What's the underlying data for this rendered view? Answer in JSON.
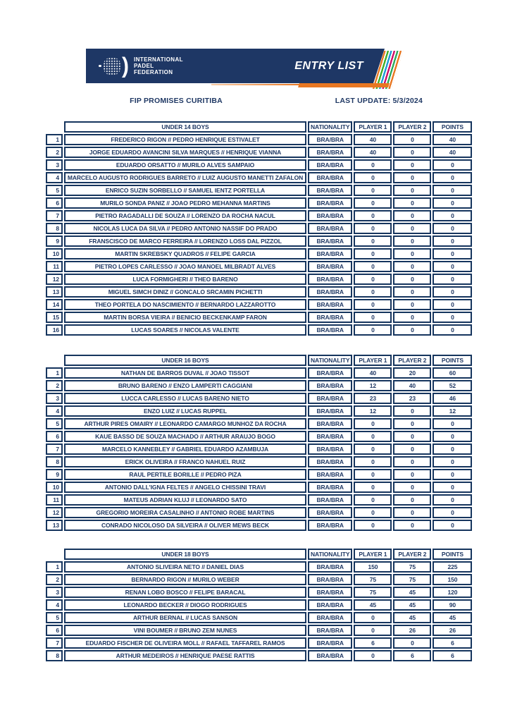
{
  "banner": {
    "org_lines": [
      "INTERNATIONAL",
      "PADEL",
      "FEDERATION"
    ],
    "badge": "ENTRY LIST"
  },
  "header": {
    "event": "FIP PROMISES CURITIBA",
    "last_update": "LAST UPDATE: 5/3/2024"
  },
  "columns": {
    "nationality": "NATIONALITY",
    "player1": "PLAYER 1",
    "player2": "PLAYER 2",
    "points": "POINTS"
  },
  "colors": {
    "navy": "#1e3765",
    "text": "#1f3864",
    "border": "#16355e",
    "orange": "#e87722",
    "stripes": [
      "#e87722",
      "#3fae2a",
      "#1d9bd7",
      "#ce0f69",
      "#2baa5e",
      "#e87722"
    ]
  },
  "tables": [
    {
      "title": "UNDER 14 BOYS",
      "rows": [
        [
          "1",
          "FREDERICO RIGON // PEDRO HENRIQUE ESTIVALET",
          "BRA/BRA",
          "40",
          "0",
          "40"
        ],
        [
          "2",
          "JORGE EDUARDO AVANCINI SILVA MARQUES // HENRIQUE VIANNA",
          "BRA/BRA",
          "40",
          "0",
          "40"
        ],
        [
          "3",
          "EDUARDO ORSATTO // MURILO ALVES SAMPAIO",
          "BRA/BRA",
          "0",
          "0",
          "0"
        ],
        [
          "4",
          "MARCELO AUGUSTO RODRIGUES BARRETO // LUIZ AUGUSTO MANETTI ZAFALON",
          "BRA/BRA",
          "0",
          "0",
          "0"
        ],
        [
          "5",
          "ENRICO SUZIN SORBELLO // SAMUEL IENTZ PORTELLA",
          "BRA/BRA",
          "0",
          "0",
          "0"
        ],
        [
          "6",
          "MURILO SONDA PANIZ // JOAO PEDRO MEHANNA MARTINS",
          "BRA/BRA",
          "0",
          "0",
          "0"
        ],
        [
          "7",
          "PIETRO RAGADALLI DE SOUZA // LORENZO DA ROCHA NACUL",
          "BRA/BRA",
          "0",
          "0",
          "0"
        ],
        [
          "8",
          "NICOLAS LUCA DA SILVA // PEDRO ANTONIO NASSIF DO PRADO",
          "BRA/BRA",
          "0",
          "0",
          "0"
        ],
        [
          "9",
          "FRANSCISCO DE MARCO FERREIRA // LORENZO LOSS DAL PIZZOL",
          "BRA/BRA",
          "0",
          "0",
          "0"
        ],
        [
          "10",
          "MARTIN SKREBSKY QUADROS // FELIPE GARCIA",
          "BRA/BRA",
          "0",
          "0",
          "0"
        ],
        [
          "11",
          "PIETRO LOPES CARLESSO // JOAO MANOEL MILBRADT ALVES",
          "BRA/BRA",
          "0",
          "0",
          "0"
        ],
        [
          "12",
          "LUCA FORMIGHERI // THEO BARENO",
          "BRA/BRA",
          "0",
          "0",
          "0"
        ],
        [
          "13",
          "MIGUEL SIMCH DINIZ // GONCALO SRCAMIN PICHETTI",
          "BRA/BRA",
          "0",
          "0",
          "0"
        ],
        [
          "14",
          "THEO PORTELA DO NASCIMIENTO // BERNARDO LAZZAROTTO",
          "BRA/BRA",
          "0",
          "0",
          "0"
        ],
        [
          "15",
          "MARTIN BORSA VIEIRA // BENICIO BECKENKAMP FARON",
          "BRA/BRA",
          "0",
          "0",
          "0"
        ],
        [
          "16",
          "LUCAS SOARES // NICOLAS VALENTE",
          "BRA/BRA",
          "0",
          "0",
          "0"
        ]
      ]
    },
    {
      "title": "UNDER 16 BOYS",
      "rows": [
        [
          "1",
          "NATHAN DE BARROS DUVAL // JOAO TISSOT",
          "BRA/BRA",
          "40",
          "20",
          "60"
        ],
        [
          "2",
          "BRUNO BARENO // ENZO LAMPERTI CAGGIANI",
          "BRA/BRA",
          "12",
          "40",
          "52"
        ],
        [
          "3",
          "LUCCA CARLESSO // LUCAS BARENO NIETO",
          "BRA/BRA",
          "23",
          "23",
          "46"
        ],
        [
          "4",
          "ENZO LUIZ // LUCAS RUPPEL",
          "BRA/BRA",
          "12",
          "0",
          "12"
        ],
        [
          "5",
          "ARTHUR PIRES OMAIRY // LEONARDO CAMARGO MUNHOZ DA ROCHA",
          "BRA/BRA",
          "0",
          "0",
          "0"
        ],
        [
          "6",
          "KAUE BASSO DE SOUZA MACHADO // ARTHUR ARAUJO BOGO",
          "BRA/BRA",
          "0",
          "0",
          "0"
        ],
        [
          "7",
          "MARCELO KANNEBLEY // GABRIEL EDUARDO AZAMBUJA",
          "BRA/BRA",
          "0",
          "0",
          "0"
        ],
        [
          "8",
          "ERICK OLIVEIRA // FRANCO NAHUEL RUIZ",
          "BRA/BRA",
          "0",
          "0",
          "0"
        ],
        [
          "9",
          "RAUL PERTILE BORILLE // PEDRO PIZA",
          "BRA/BRA",
          "0",
          "0",
          "0"
        ],
        [
          "10",
          "ANTONIO DALL'IGNA FELTES // ANGELO CHISSINI TRAVI",
          "BRA/BRA",
          "0",
          "0",
          "0"
        ],
        [
          "11",
          "MATEUS ADRIAN KLUJ // LEONARDO SATO",
          "BRA/BRA",
          "0",
          "0",
          "0"
        ],
        [
          "12",
          "GREGORIO MOREIRA CASALINHO // ANTONIO ROBE MARTINS",
          "BRA/BRA",
          "0",
          "0",
          "0"
        ],
        [
          "13",
          "CONRADO NICOLOSO DA SILVEIRA // OLIVER MEWS BECK",
          "BRA/BRA",
          "0",
          "0",
          "0"
        ]
      ]
    },
    {
      "title": "UNDER 18 BOYS",
      "rows": [
        [
          "1",
          "ANTONIO SLIVEIRA NETO // DANIEL DIAS",
          "BRA/BRA",
          "150",
          "75",
          "225"
        ],
        [
          "2",
          "BERNARDO RIGON // MURILO WEBER",
          "BRA/BRA",
          "75",
          "75",
          "150"
        ],
        [
          "3",
          "RENAN LOBO BOSCO // FELIPE BARACAL",
          "BRA/BRA",
          "75",
          "45",
          "120"
        ],
        [
          "4",
          "LEONARDO BECKER // DIOGO RODRIGUES",
          "BRA/BRA",
          "45",
          "45",
          "90"
        ],
        [
          "5",
          "ARTHUR BERNAL // LUCAS SANSON",
          "BRA/BRA",
          "0",
          "45",
          "45"
        ],
        [
          "6",
          "VINI BOUMER // BRUNO ZEM NUNES",
          "BRA/BRA",
          "0",
          "26",
          "26"
        ],
        [
          "7",
          "EDUARDO FISCHER DE OLIVEIRA MOLL // RAFAEL TAFFAREL RAMOS",
          "BRA/BRA",
          "6",
          "0",
          "6"
        ],
        [
          "8",
          "ARTHUR MEDEIROS // HENRIQUE PAESE RATTIS",
          "BRA/BRA",
          "0",
          "6",
          "6"
        ]
      ]
    }
  ]
}
